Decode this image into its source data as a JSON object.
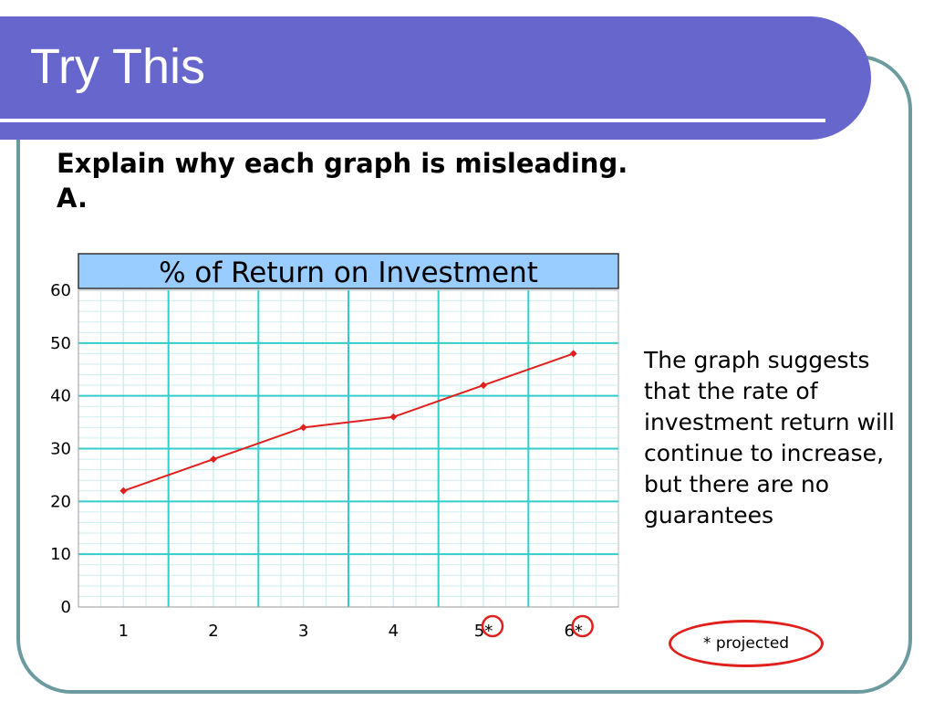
{
  "slide": {
    "title": "Try This",
    "heading": "Explain why each graph is misleading.",
    "sublabel": "A.",
    "explanation": "The graph suggests that the rate of investment return will continue to increase, but there are no guarantees",
    "note": "* projected"
  },
  "colors": {
    "title_bar": "#6666cc",
    "frame_border": "#6b9b9e",
    "chart_title_bg": "#99ccff",
    "grid_major": "#33cccc",
    "grid_minor": "#cceeee",
    "series_line": "#e0201c",
    "circle_highlight": "#e0201c"
  },
  "chart_data": {
    "type": "line",
    "title": "% of Return on Investment",
    "categories": [
      "1",
      "2",
      "3",
      "4",
      "5*",
      "6*"
    ],
    "series": [
      {
        "values": [
          22,
          28,
          34,
          36,
          42,
          48
        ]
      }
    ],
    "ylim": [
      0,
      60
    ],
    "yticks": [
      0,
      10,
      20,
      30,
      40,
      50,
      60
    ],
    "xlabel": "",
    "ylabel": "",
    "grid": true,
    "highlighted_categories": [
      "5*",
      "6*"
    ]
  }
}
